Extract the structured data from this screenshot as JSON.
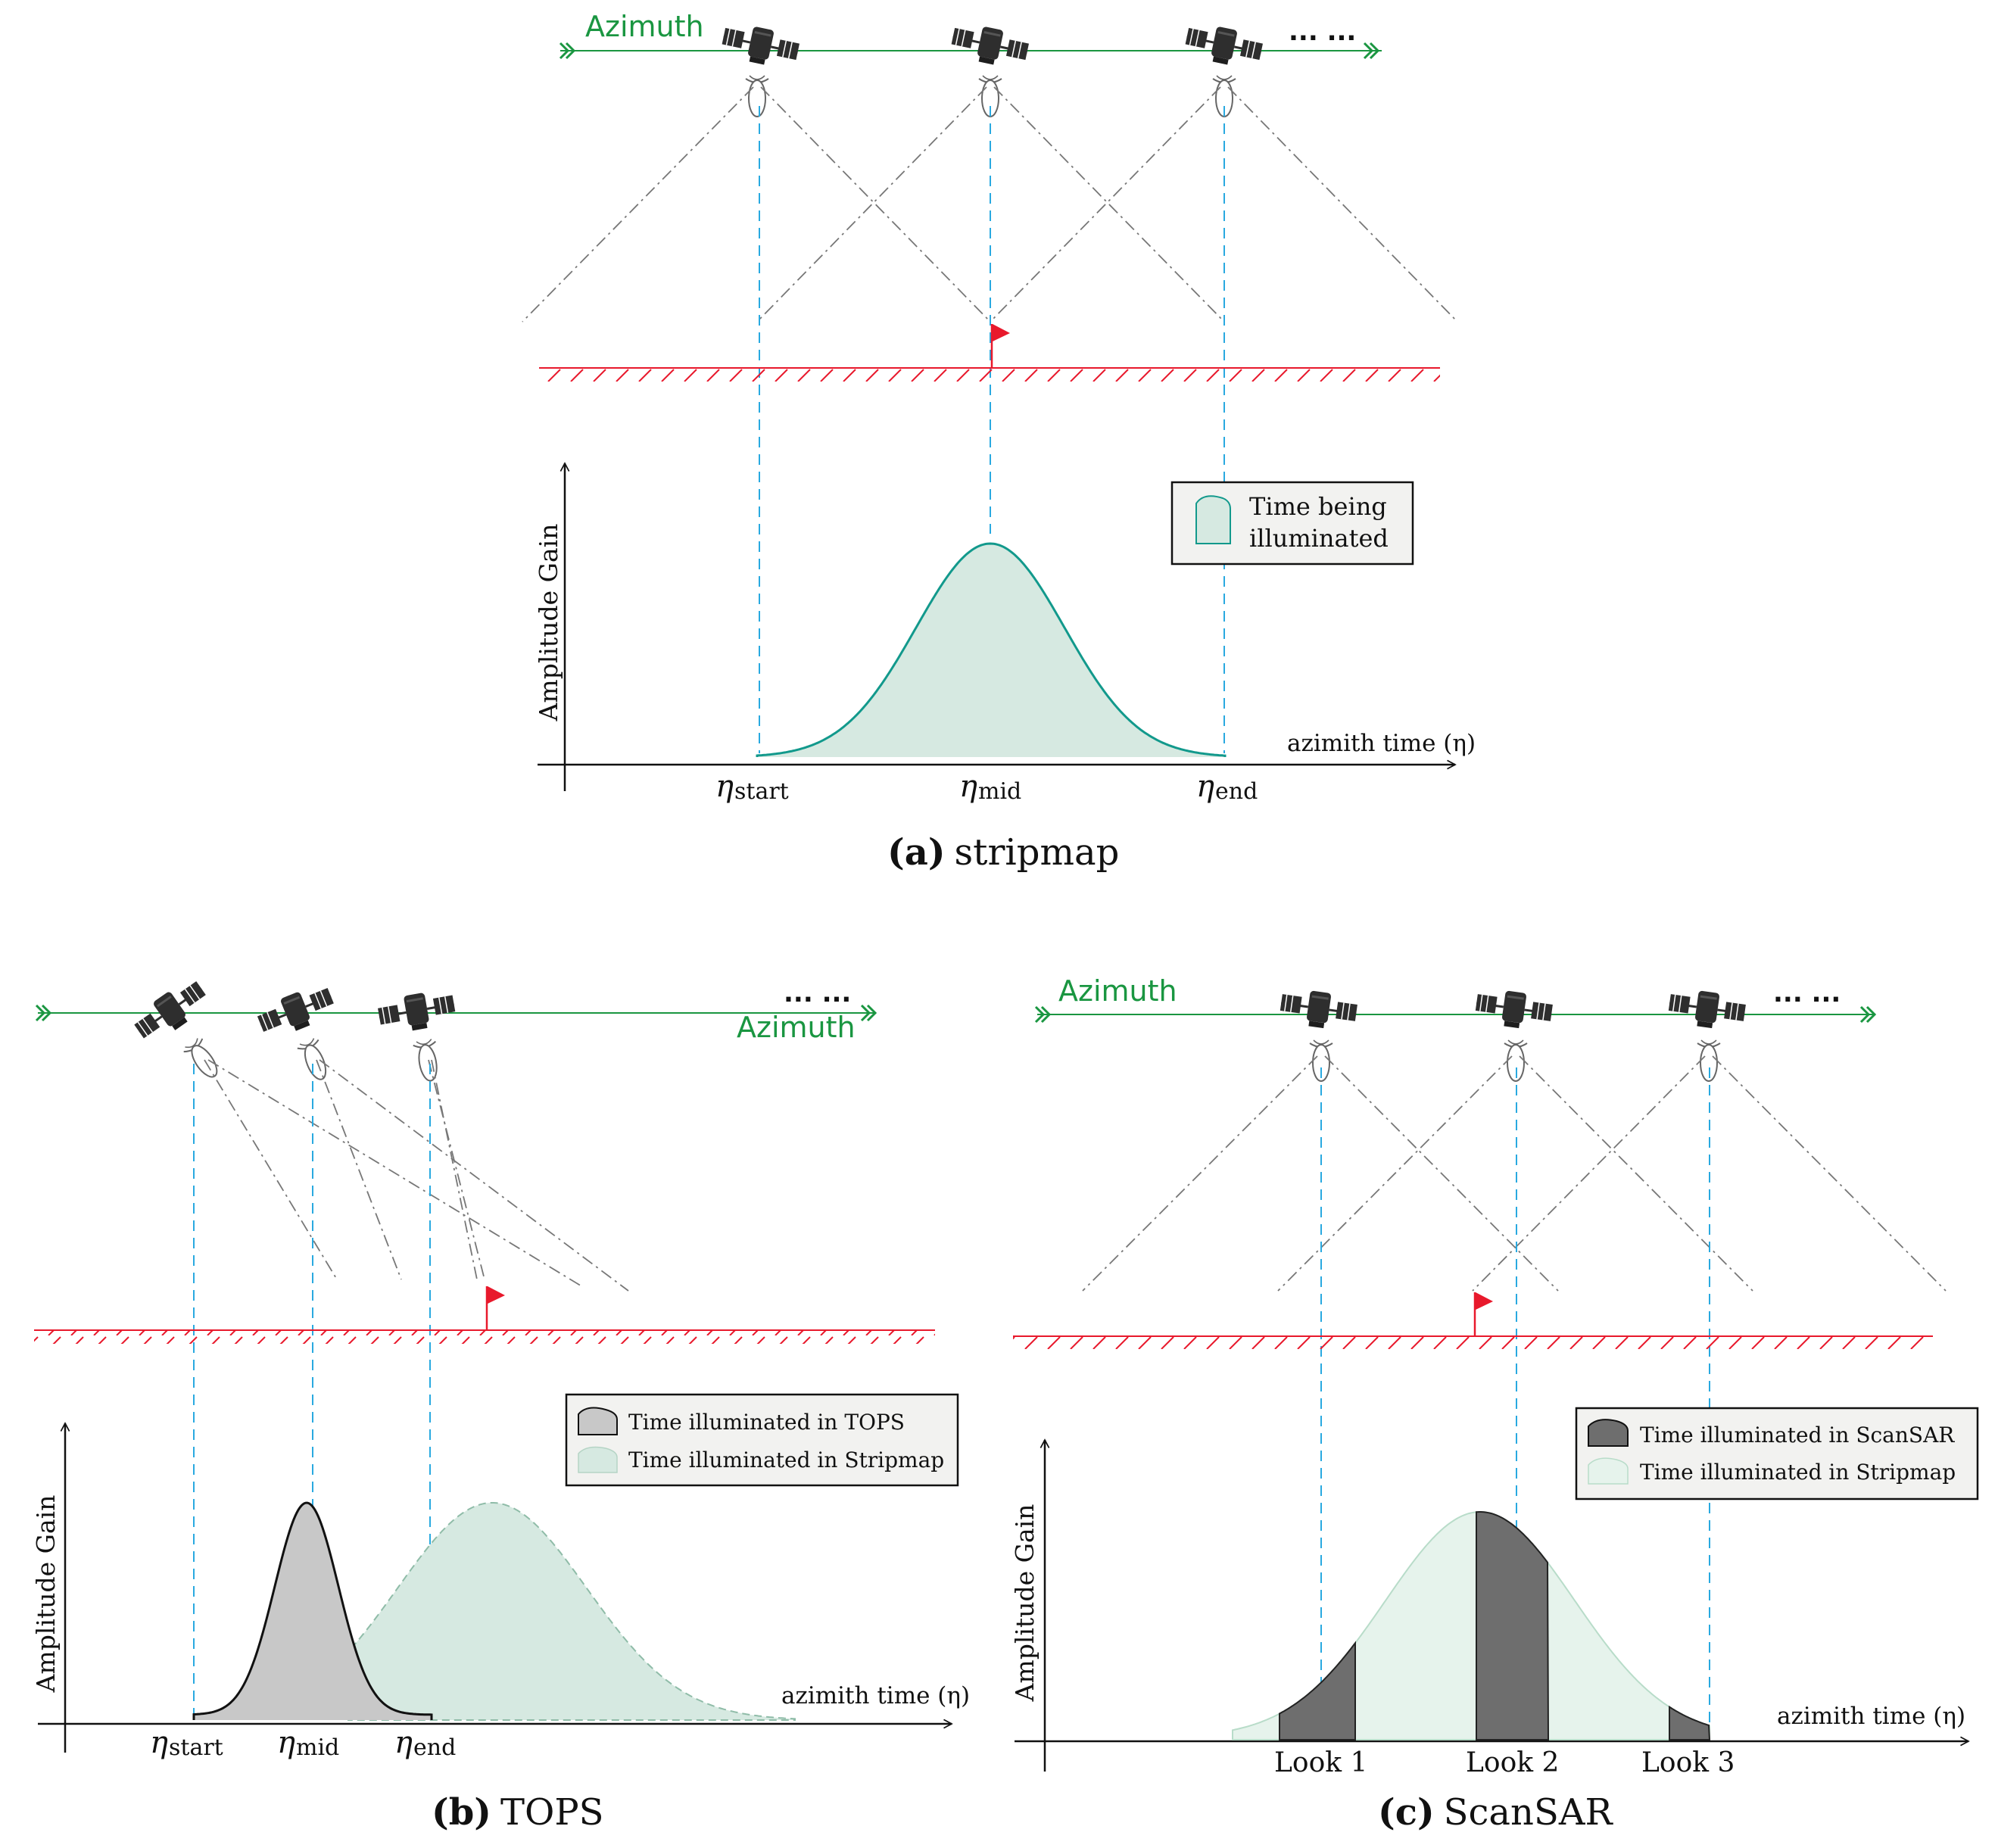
{
  "colors": {
    "azimuth_green": "#1a9641",
    "ground_red": "#e8192c",
    "beam_blue": "#29a9e0",
    "curve_teal": "#12998c",
    "fill_mint": "#d6e9e1",
    "fill_mint_light": "#e6f3ec",
    "fill_gray": "#c8c8c8",
    "fill_dark": "#6e6e6e",
    "legend_bg": "#f2f2f0"
  },
  "icons": {
    "satellite": "satellite-icon",
    "antenna": "antenna-beam-icon",
    "flag": "target-flag-icon",
    "arrow": "double-chevron-arrow-icon"
  },
  "ellipsis": "... ...",
  "panel_a": {
    "azimuth_label": "Azimuth",
    "y_label": "Amplitude Gain",
    "x_label": "azimith time (η)",
    "tick_eta": "η",
    "tick_start": "start",
    "tick_mid": "mid",
    "tick_end": "end",
    "legend_line1": "Time being",
    "legend_line2": "illuminated",
    "caption_letter": "(a)",
    "caption_text": "stripmap"
  },
  "panel_b": {
    "azimuth_label": "Azimuth",
    "y_label": "Amplitude Gain",
    "x_label": "azimith time (η)",
    "tick_eta": "η",
    "tick_start": "start",
    "tick_mid": "mid",
    "tick_end": "end",
    "legend_tops": "Time illuminated in TOPS",
    "legend_strip": "Time illuminated in Stripmap",
    "caption_letter": "(b)",
    "caption_text": "TOPS"
  },
  "panel_c": {
    "azimuth_label": "Azimuth",
    "y_label": "Amplitude Gain",
    "x_label": "azimith time (η)",
    "look1": "Look 1",
    "look2": "Look 2",
    "look3": "Look 3",
    "legend_scansar": "Time illuminated in ScanSAR",
    "legend_strip": "Time illuminated in Stripmap",
    "caption_letter": "(c)",
    "caption_text": "ScanSAR"
  }
}
